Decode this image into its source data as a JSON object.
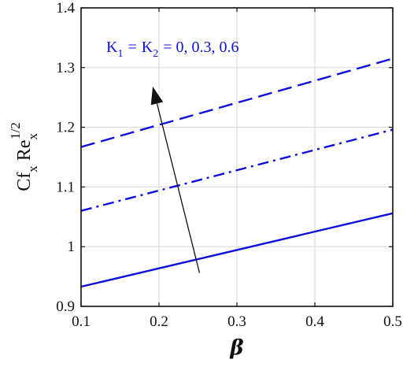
{
  "chart_data": {
    "type": "line",
    "xlabel": "β",
    "ylabel": {
      "base1": "Cf",
      "sub1": "x",
      "base2": "Re",
      "sub2": "x",
      "sup2": "1/2"
    },
    "xlim": [
      0.1,
      0.5
    ],
    "ylim": [
      0.9,
      1.4
    ],
    "xticks": [
      "0.1",
      "0.2",
      "0.3",
      "0.4",
      "0.5"
    ],
    "yticks": [
      "0.9",
      "1",
      "1.1",
      "1.2",
      "1.3",
      "1.4"
    ],
    "grid": true,
    "color": "#1010dd",
    "series": [
      {
        "style": "solid",
        "x": [
          0.1,
          0.5
        ],
        "y": [
          0.933,
          1.056
        ]
      },
      {
        "style": "dashdot",
        "x": [
          0.1,
          0.5
        ],
        "y": [
          1.06,
          1.196
        ]
      },
      {
        "style": "dashed",
        "x": [
          0.1,
          0.5
        ],
        "y": [
          1.167,
          1.315
        ]
      }
    ],
    "annotation": {
      "K_base": "K",
      "sub1": "1",
      "sub2": "2",
      "eq": "=",
      "values": "= 0, 0.3, 0.6",
      "position": "top-left"
    },
    "arrow": {
      "from": [
        0.252,
        0.956
      ],
      "to": [
        0.192,
        1.268
      ]
    }
  }
}
